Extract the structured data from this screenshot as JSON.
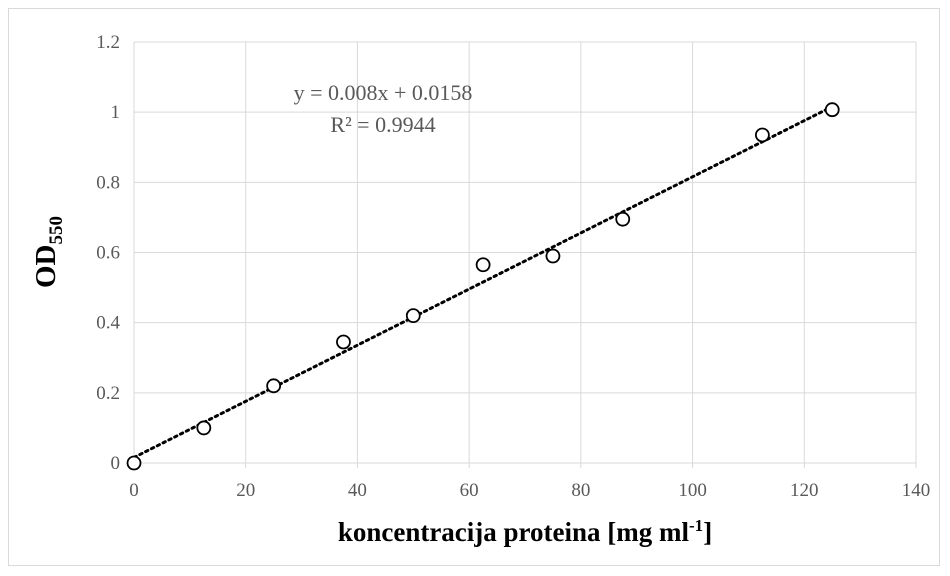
{
  "chart_data": {
    "type": "scatter",
    "x": [
      0,
      12.5,
      25,
      37.5,
      50,
      62.5,
      75,
      87.5,
      112.5,
      125
    ],
    "y": [
      0,
      0.1,
      0.22,
      0.345,
      0.42,
      0.565,
      0.59,
      0.695,
      0.935,
      1.007
    ],
    "xlim": [
      0,
      140
    ],
    "ylim": [
      0,
      1.2
    ],
    "xticks": [
      "0",
      "20",
      "40",
      "60",
      "80",
      "100",
      "120",
      "140"
    ],
    "yticks": [
      "0",
      "0.2",
      "0.4",
      "0.6",
      "0.8",
      "1",
      "1.2"
    ],
    "xlabel": {
      "main": "koncentracija proteina [mg ml",
      "superscript": "-1",
      "close": "]"
    },
    "ylabel": {
      "main": "OD",
      "subscript": "550"
    },
    "trendline": {
      "type": "linear",
      "style": "dotted",
      "slope": 0.008,
      "intercept": 0.0158,
      "equation": "y = 0.008x + 0.0158",
      "r_squared": "R² = 0.9944"
    },
    "grid": true,
    "marker": "open-circle",
    "colors": {
      "grid": "#d9d9d9",
      "marker": "#000000",
      "trendline": "#000000",
      "tick_text": "#595959"
    }
  }
}
